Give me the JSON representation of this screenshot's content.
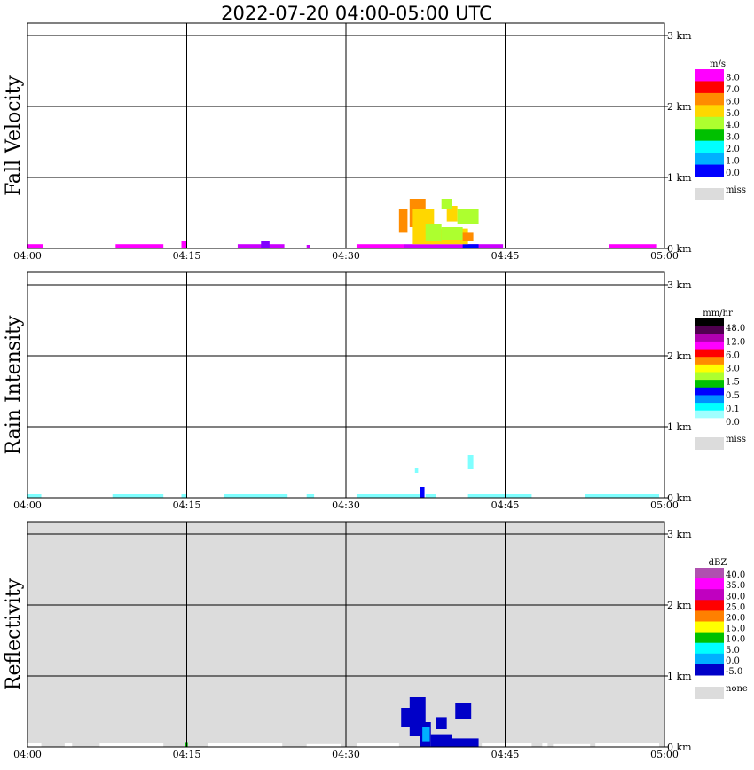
{
  "title": "2022-07-20   04:00-05:00 UTC",
  "x_ticks": [
    "04:00",
    "04:15",
    "04:30",
    "04:45",
    "05:00"
  ],
  "height_ticks": [
    "3 km",
    "2 km",
    "1 km",
    "0 km"
  ],
  "chart_data": [
    {
      "type": "heatmap",
      "ylabel": "Fall Velocity",
      "units": "m/s",
      "background": "#ffffff",
      "legend_colors": [
        "#ff00ff",
        "#ff0000",
        "#ff8c00",
        "#ffd700",
        "#adff2f",
        "#00c000",
        "#00ffff",
        "#00b0ff",
        "#0000ff"
      ],
      "legend_labels": [
        "8.0",
        "7.0",
        "6.0",
        "5.0",
        "4.0",
        "3.0",
        "2.0",
        "1.0",
        "0.0"
      ],
      "miss_label": "miss",
      "xlim_minutes": [
        0,
        60
      ],
      "ylim_km": [
        0,
        3.2
      ],
      "echoes": [
        {
          "t": [
            0,
            1.5
          ],
          "h": [
            0.0,
            0.06
          ],
          "color": "#ff00ff"
        },
        {
          "t": [
            8.3,
            12.8
          ],
          "h": [
            0.0,
            0.06
          ],
          "color": "#ff00ff"
        },
        {
          "t": [
            14.5,
            15.0
          ],
          "h": [
            0.0,
            0.1
          ],
          "color": "#ff00ff"
        },
        {
          "t": [
            19.8,
            24.2
          ],
          "h": [
            0.0,
            0.06
          ],
          "color": "#cc00ff"
        },
        {
          "t": [
            22.0,
            22.8
          ],
          "h": [
            0.0,
            0.1
          ],
          "color": "#8000ff"
        },
        {
          "t": [
            26.3,
            26.6
          ],
          "h": [
            0.0,
            0.05
          ],
          "color": "#cc00ff"
        },
        {
          "t": [
            31.0,
            35.5
          ],
          "h": [
            0.0,
            0.06
          ],
          "color": "#ff00ff"
        },
        {
          "t": [
            35.5,
            44.8
          ],
          "h": [
            0.0,
            0.06
          ],
          "color": "#cc00ff"
        },
        {
          "t": [
            41.0,
            42.5
          ],
          "h": [
            0.0,
            0.06
          ],
          "color": "#0000ff"
        },
        {
          "t": [
            54.8,
            59.3
          ],
          "h": [
            0.0,
            0.06
          ],
          "color": "#ff00ff"
        },
        {
          "t": [
            35.0,
            35.8
          ],
          "h": [
            0.22,
            0.55
          ],
          "color": "#ff8c00"
        },
        {
          "t": [
            36.0,
            37.5
          ],
          "h": [
            0.3,
            0.7
          ],
          "color": "#ff8c00"
        },
        {
          "t": [
            36.3,
            38.3
          ],
          "h": [
            0.06,
            0.55
          ],
          "color": "#ffd700"
        },
        {
          "t": [
            38.0,
            41.5
          ],
          "h": [
            0.06,
            0.28
          ],
          "color": "#ffd700"
        },
        {
          "t": [
            37.5,
            39.0
          ],
          "h": [
            0.1,
            0.35
          ],
          "color": "#adff2f"
        },
        {
          "t": [
            39.0,
            41.0
          ],
          "h": [
            0.12,
            0.3
          ],
          "color": "#adff2f"
        },
        {
          "t": [
            39.5,
            40.5
          ],
          "h": [
            0.38,
            0.6
          ],
          "color": "#ffd700"
        },
        {
          "t": [
            40.5,
            42.5
          ],
          "h": [
            0.35,
            0.55
          ],
          "color": "#adff2f"
        },
        {
          "t": [
            39.0,
            40.0
          ],
          "h": [
            0.55,
            0.7
          ],
          "color": "#adff2f"
        },
        {
          "t": [
            41.0,
            42.0
          ],
          "h": [
            0.1,
            0.22
          ],
          "color": "#ff8c00"
        }
      ]
    },
    {
      "type": "heatmap",
      "ylabel": "Rain Intensity",
      "units": "mm/hr",
      "background": "#ffffff",
      "legend_colors": [
        "#000000",
        "#500050",
        "#b000b0",
        "#ff00ff",
        "#ff0000",
        "#ff8c00",
        "#ffff00",
        "#adff2f",
        "#00c000",
        "#0000ff",
        "#0090ff",
        "#00ffff",
        "#a0ffff",
        "#ffffff"
      ],
      "legend_labels": [
        "48.0",
        "12.0",
        "6.0",
        "3.0",
        "1.5",
        "0.5",
        "0.1",
        "0.0"
      ],
      "miss_label": "miss",
      "xlim_minutes": [
        0,
        60
      ],
      "ylim_km": [
        0,
        3.2
      ],
      "echoes": [
        {
          "t": [
            0,
            1.3
          ],
          "h": [
            0.0,
            0.05
          ],
          "color": "#7fffff"
        },
        {
          "t": [
            8.0,
            12.8
          ],
          "h": [
            0.0,
            0.05
          ],
          "color": "#7fffff"
        },
        {
          "t": [
            14.5,
            15.0
          ],
          "h": [
            0.0,
            0.05
          ],
          "color": "#7fffff"
        },
        {
          "t": [
            18.5,
            24.5
          ],
          "h": [
            0.0,
            0.05
          ],
          "color": "#7fffff"
        },
        {
          "t": [
            26.3,
            27.0
          ],
          "h": [
            0.0,
            0.05
          ],
          "color": "#7fffff"
        },
        {
          "t": [
            31.0,
            37.0
          ],
          "h": [
            0.0,
            0.05
          ],
          "color": "#7fffff"
        },
        {
          "t": [
            37.0,
            37.4
          ],
          "h": [
            0.0,
            0.15
          ],
          "color": "#0000ff"
        },
        {
          "t": [
            37.5,
            38.5
          ],
          "h": [
            0.0,
            0.05
          ],
          "color": "#7fffff"
        },
        {
          "t": [
            41.5,
            47.5
          ],
          "h": [
            0.0,
            0.05
          ],
          "color": "#7fffff"
        },
        {
          "t": [
            36.5,
            36.8
          ],
          "h": [
            0.35,
            0.42
          ],
          "color": "#7fffff"
        },
        {
          "t": [
            41.5,
            42.0
          ],
          "h": [
            0.4,
            0.6
          ],
          "color": "#7fffff"
        },
        {
          "t": [
            52.5,
            59.5
          ],
          "h": [
            0.0,
            0.05
          ],
          "color": "#7fffff"
        }
      ]
    },
    {
      "type": "heatmap",
      "ylabel": "Reflectivity",
      "units": "dBZ",
      "background": "#dcdcdc",
      "legend_colors": [
        "#b050b0",
        "#ff00ff",
        "#c000c0",
        "#ff0000",
        "#ff8000",
        "#ffff00",
        "#00c000",
        "#00ffff",
        "#00b0ff",
        "#0000c8"
      ],
      "legend_labels": [
        "40.0",
        "35.0",
        "30.0",
        "25.0",
        "20.0",
        "15.0",
        "10.0",
        "5.0",
        "0.0",
        "-5.0"
      ],
      "miss_label": "none",
      "xlim_minutes": [
        0,
        60
      ],
      "ylim_km": [
        0,
        3.2
      ],
      "echoes": [
        {
          "t": [
            0,
            1.3
          ],
          "h": [
            0.0,
            0.05
          ],
          "color": "#ffffff"
        },
        {
          "t": [
            3.5,
            4.2
          ],
          "h": [
            0.0,
            0.05
          ],
          "color": "#ffffff"
        },
        {
          "t": [
            6.8,
            12.8
          ],
          "h": [
            0.0,
            0.06
          ],
          "color": "#ffffff"
        },
        {
          "t": [
            14.8,
            15.1
          ],
          "h": [
            0.0,
            0.07
          ],
          "color": "#00c000"
        },
        {
          "t": [
            17.0,
            24.0
          ],
          "h": [
            0.0,
            0.05
          ],
          "color": "#ffffff"
        },
        {
          "t": [
            26.3,
            29.5
          ],
          "h": [
            0.0,
            0.04
          ],
          "color": "#ffffff"
        },
        {
          "t": [
            31.0,
            35.0
          ],
          "h": [
            0.0,
            0.05
          ],
          "color": "#ffffff"
        },
        {
          "t": [
            35.2,
            36.5
          ],
          "h": [
            0.28,
            0.55
          ],
          "color": "#0000c8"
        },
        {
          "t": [
            36.0,
            37.5
          ],
          "h": [
            0.15,
            0.7
          ],
          "color": "#0000c8"
        },
        {
          "t": [
            37.0,
            38.0
          ],
          "h": [
            0.0,
            0.35
          ],
          "color": "#0000c8"
        },
        {
          "t": [
            37.2,
            37.9
          ],
          "h": [
            0.08,
            0.28
          ],
          "color": "#00b0ff"
        },
        {
          "t": [
            38.0,
            40.0
          ],
          "h": [
            0.0,
            0.18
          ],
          "color": "#0000c8"
        },
        {
          "t": [
            40.0,
            42.5
          ],
          "h": [
            0.0,
            0.12
          ],
          "color": "#0000c8"
        },
        {
          "t": [
            38.5,
            39.5
          ],
          "h": [
            0.25,
            0.42
          ],
          "color": "#0000c8"
        },
        {
          "t": [
            40.3,
            41.8
          ],
          "h": [
            0.4,
            0.62
          ],
          "color": "#0000c8"
        },
        {
          "t": [
            42.8,
            47.5
          ],
          "h": [
            0.0,
            0.05
          ],
          "color": "#ffffff"
        },
        {
          "t": [
            48.5,
            49.0
          ],
          "h": [
            0.0,
            0.05
          ],
          "color": "#ffffff"
        },
        {
          "t": [
            49.5,
            53.0
          ],
          "h": [
            0.0,
            0.04
          ],
          "color": "#ffffff"
        },
        {
          "t": [
            53.5,
            59.5
          ],
          "h": [
            0.0,
            0.06
          ],
          "color": "#ffffff"
        }
      ]
    }
  ]
}
